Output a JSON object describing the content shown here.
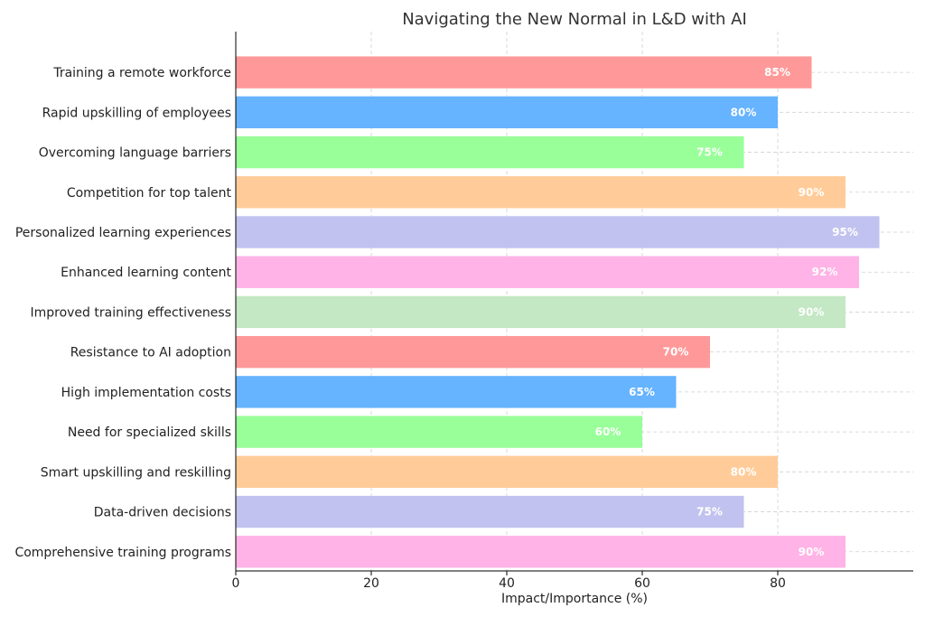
{
  "chart_data": {
    "type": "bar",
    "orientation": "horizontal",
    "title": "Navigating the New Normal in L&D with AI",
    "xlabel": "Impact/Importance (%)",
    "ylabel": "",
    "xlim": [
      0,
      100
    ],
    "xticks": [
      0,
      20,
      40,
      60,
      80
    ],
    "grid": true,
    "categories": [
      "Training a remote workforce",
      "Rapid upskilling of employees",
      "Overcoming language barriers",
      "Competition for top talent",
      "Personalized learning experiences",
      "Enhanced learning content",
      "Improved training effectiveness",
      "Resistance to AI adoption",
      "High implementation costs",
      "Need for specialized skills",
      "Smart upskilling and reskilling",
      "Data-driven decisions",
      "Comprehensive training programs"
    ],
    "values": [
      85,
      80,
      75,
      90,
      95,
      92,
      90,
      70,
      65,
      60,
      80,
      75,
      90
    ],
    "value_labels": [
      "85%",
      "80%",
      "75%",
      "90%",
      "95%",
      "92%",
      "90%",
      "70%",
      "65%",
      "60%",
      "80%",
      "75%",
      "90%"
    ],
    "colors": [
      "#ff9999",
      "#66b3ff",
      "#99ff99",
      "#ffcc99",
      "#c2c2f0",
      "#ffb3e6",
      "#c4e7c4",
      "#ff9999",
      "#66b3ff",
      "#99ff99",
      "#ffcc99",
      "#c2c2f0",
      "#ffb3e6"
    ]
  }
}
